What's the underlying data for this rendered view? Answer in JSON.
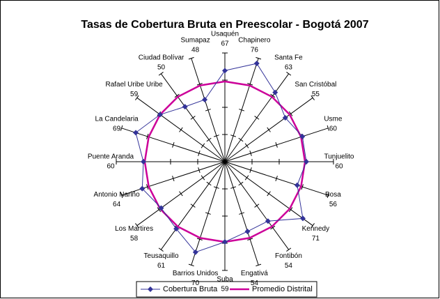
{
  "chart_data": {
    "type": "radar",
    "title": "Tasas de Cobertura Bruta en Preescolar - Bogotá 2007",
    "categories": [
      "Usaquén",
      "Chapinero",
      "Santa Fe",
      "San Cristóbal",
      "Usme",
      "Tunjuelito",
      "Bosa",
      "Kennedy",
      "Fontibón",
      "Engativá",
      "Suba",
      "Barrios Unidos",
      "Teusaquillo",
      "Los Martires",
      "Antonio Nariño",
      "Puente Aranda",
      "La Candelaria",
      "Rafael Uribe Uribe",
      "Ciudad Bolívar",
      "Sumapaz"
    ],
    "series": [
      {
        "name": "Cobertura Bruta",
        "color": "#333399",
        "values": [
          67,
          76,
          63,
          55,
          60,
          60,
          56,
          71,
          54,
          54,
          59,
          70,
          61,
          58,
          64,
          60,
          69,
          59,
          50,
          48
        ]
      },
      {
        "name": "Promedio Distrital",
        "color": "#cc0099",
        "values": [
          59,
          59,
          59,
          59,
          59,
          59,
          59,
          59,
          59,
          59,
          59,
          59,
          59,
          59,
          59,
          59,
          59,
          59,
          59,
          59
        ]
      }
    ],
    "ylim": [
      0,
      80
    ],
    "yticks": [
      0,
      20,
      40,
      60,
      80
    ],
    "legend": "bottom"
  }
}
